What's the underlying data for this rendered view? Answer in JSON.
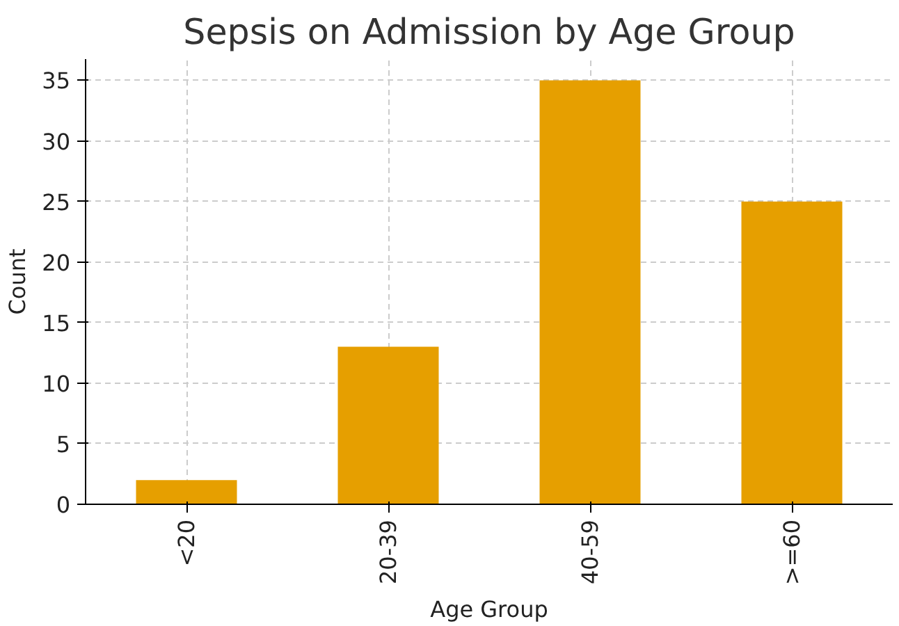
{
  "chart_data": {
    "type": "bar",
    "title": "Sepsis on Admission by Age Group",
    "xlabel": "Age Group",
    "ylabel": "Count",
    "categories": [
      "<20",
      "20-39",
      "40-59",
      ">=60"
    ],
    "values": [
      2,
      13,
      35,
      25
    ],
    "color": "#e69f00",
    "ylim": [
      0,
      36.75
    ],
    "yticks": [
      0,
      5,
      10,
      15,
      20,
      25,
      30,
      35
    ],
    "grid": true
  }
}
